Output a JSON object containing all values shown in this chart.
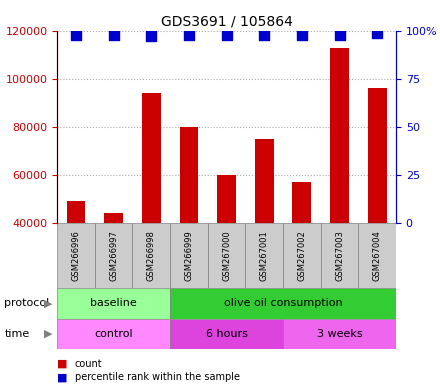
{
  "title": "GDS3691 / 105864",
  "samples": [
    "GSM266996",
    "GSM266997",
    "GSM266998",
    "GSM266999",
    "GSM267000",
    "GSM267001",
    "GSM267002",
    "GSM267003",
    "GSM267004"
  ],
  "counts": [
    49000,
    44000,
    94000,
    80000,
    60000,
    75000,
    57000,
    113000,
    96000
  ],
  "percentile_ranks": [
    98,
    98,
    97,
    98,
    98,
    98,
    98,
    98,
    99
  ],
  "ylim_left": [
    40000,
    120000
  ],
  "ylim_right": [
    0,
    100
  ],
  "yticks_left": [
    40000,
    60000,
    80000,
    100000,
    120000
  ],
  "yticks_right": [
    0,
    25,
    50,
    75,
    100
  ],
  "bar_color": "#cc0000",
  "dot_color": "#0000cc",
  "dot_size": 50,
  "protocol_groups": [
    {
      "label": "baseline",
      "start": 0,
      "end": 3,
      "color": "#99ff99"
    },
    {
      "label": "olive oil consumption",
      "start": 3,
      "end": 9,
      "color": "#33cc33"
    }
  ],
  "time_groups": [
    {
      "label": "control",
      "start": 0,
      "end": 3,
      "color": "#ff88ff"
    },
    {
      "label": "6 hours",
      "start": 3,
      "end": 6,
      "color": "#dd44dd"
    },
    {
      "label": "3 weeks",
      "start": 6,
      "end": 9,
      "color": "#ee66ee"
    }
  ],
  "legend_count_label": "count",
  "legend_pct_label": "percentile rank within the sample",
  "grid_color": "#aaaaaa",
  "tick_label_color_left": "#cc0000",
  "tick_label_color_right": "#0000cc",
  "bg_color": "#ffffff",
  "sample_box_color": "#cccccc"
}
